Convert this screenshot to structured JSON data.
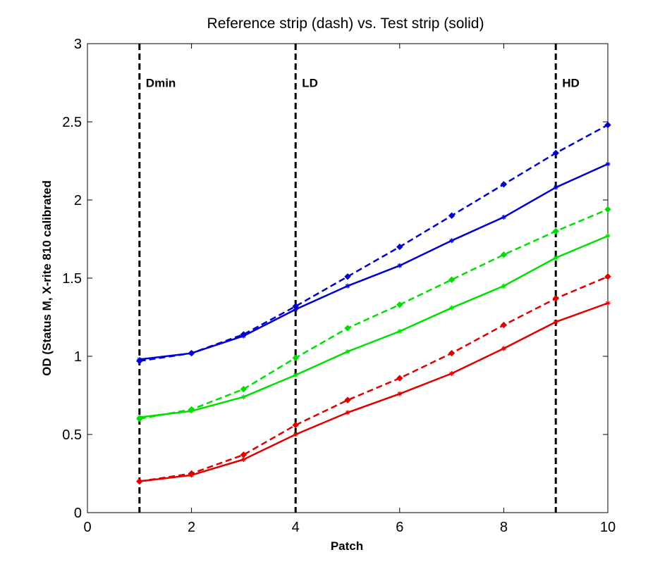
{
  "chart_data": {
    "type": "line",
    "title": "Reference strip (dash) vs. Test strip (solid)",
    "xlabel": "Patch",
    "ylabel": "OD (Status M, X-rite 810 calibrated",
    "xlim": [
      0,
      10
    ],
    "ylim": [
      0,
      3
    ],
    "xticks": [
      0,
      2,
      4,
      6,
      8,
      10
    ],
    "yticks": [
      0,
      0.5,
      1,
      1.5,
      2,
      2.5,
      3
    ],
    "x": [
      1,
      2,
      3,
      4,
      5,
      6,
      7,
      8,
      9,
      10
    ],
    "grid": false,
    "series": [
      {
        "color": "#0000cc",
        "style": "dash",
        "marker": "diamond",
        "values": [
          0.97,
          1.02,
          1.14,
          1.32,
          1.51,
          1.7,
          1.9,
          2.1,
          2.3,
          2.48
        ]
      },
      {
        "color": "#0000cc",
        "style": "solid",
        "marker": "star",
        "values": [
          0.98,
          1.02,
          1.13,
          1.3,
          1.45,
          1.58,
          1.74,
          1.89,
          2.08,
          2.23
        ]
      },
      {
        "color": "#00e000",
        "style": "dash",
        "marker": "diamond",
        "values": [
          0.6,
          0.66,
          0.79,
          0.99,
          1.18,
          1.33,
          1.49,
          1.65,
          1.8,
          1.94
        ]
      },
      {
        "color": "#00e000",
        "style": "solid",
        "marker": "star",
        "values": [
          0.61,
          0.65,
          0.74,
          0.88,
          1.03,
          1.16,
          1.31,
          1.45,
          1.63,
          1.77
        ]
      },
      {
        "color": "#e00000",
        "style": "dash",
        "marker": "diamond",
        "values": [
          0.2,
          0.25,
          0.37,
          0.56,
          0.72,
          0.86,
          1.02,
          1.2,
          1.37,
          1.51
        ]
      },
      {
        "color": "#e00000",
        "style": "solid",
        "marker": "star",
        "values": [
          0.2,
          0.24,
          0.34,
          0.5,
          0.64,
          0.76,
          0.89,
          1.05,
          1.22,
          1.34
        ]
      }
    ],
    "vlines": [
      {
        "x": 1,
        "label": "Dmin"
      },
      {
        "x": 4,
        "label": "LD"
      },
      {
        "x": 9,
        "label": "HD"
      }
    ],
    "vline_label_y": 2.75
  }
}
